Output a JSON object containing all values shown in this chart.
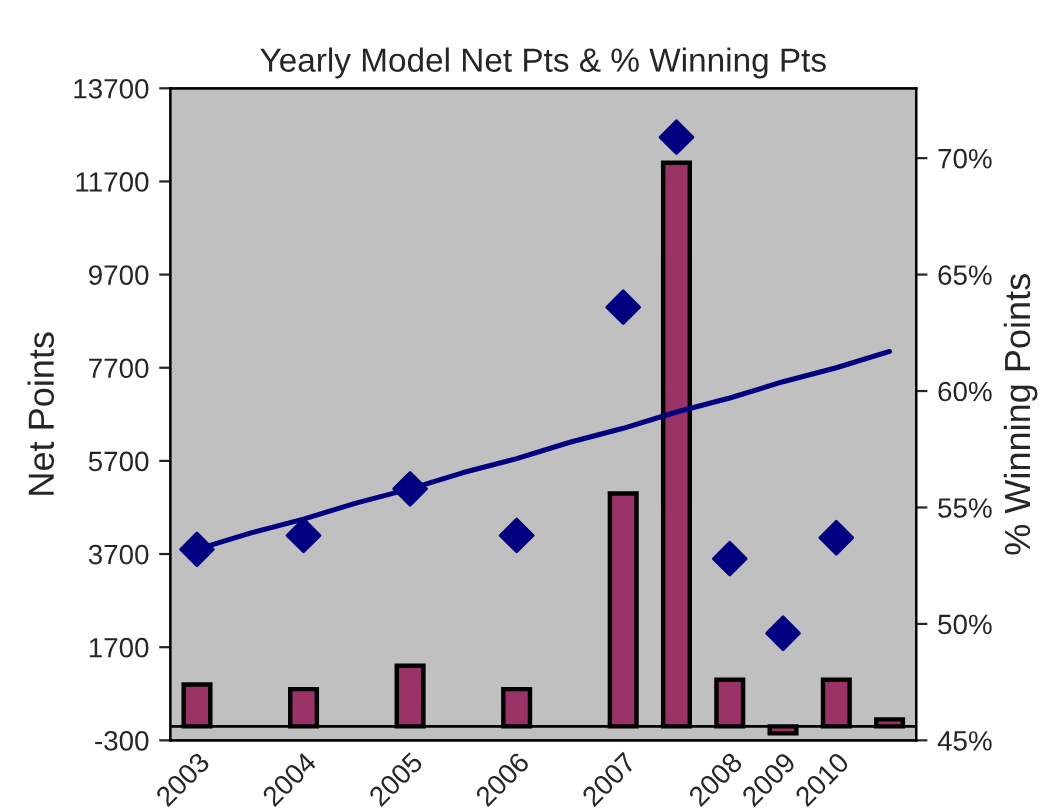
{
  "chart_data": {
    "type": "bar",
    "title": "Yearly Model Net Pts & % Winning Pts",
    "ylabel": "Net Points",
    "y2label": "% Winning Points",
    "categories": [
      "2003",
      null,
      "2004",
      null,
      "2005",
      null,
      "2006",
      null,
      "2007",
      null,
      "2008",
      "2009",
      "2010",
      null
    ],
    "series": [
      {
        "color": "#993366",
        "values": [
          900,
          null,
          800,
          null,
          1300,
          null,
          800,
          null,
          5000,
          12100,
          1000,
          -150,
          1000,
          150
        ]
      },
      {
        "type": "scatter",
        "axis": "y2",
        "color": "#000080",
        "marker": "diamond",
        "values": [
          53.2,
          null,
          53.8,
          null,
          55.8,
          null,
          53.8,
          null,
          63.6,
          70.9,
          52.8,
          49.6,
          53.7,
          null
        ]
      },
      {
        "type": "line",
        "axis": "y2",
        "color": "#000080",
        "values": [
          53.2,
          53.9,
          54.5,
          55.2,
          55.8,
          56.5,
          57.1,
          57.8,
          58.4,
          59.1,
          59.7,
          60.4,
          61.0,
          61.7
        ]
      }
    ],
    "ylim": [
      -300,
      13700
    ],
    "yticks": [
      -300,
      1700,
      3700,
      5700,
      7700,
      9700,
      11700,
      13700
    ],
    "y2lim": [
      45,
      73
    ],
    "y2ticks": [
      {
        "value": 45,
        "label": "45%"
      },
      {
        "value": 50,
        "label": "50%"
      },
      {
        "value": 55,
        "label": "55%"
      },
      {
        "value": 60,
        "label": "60%"
      },
      {
        "value": 65,
        "label": "65%"
      },
      {
        "value": 70,
        "label": "70%"
      }
    ],
    "grid": false,
    "legend": false
  }
}
